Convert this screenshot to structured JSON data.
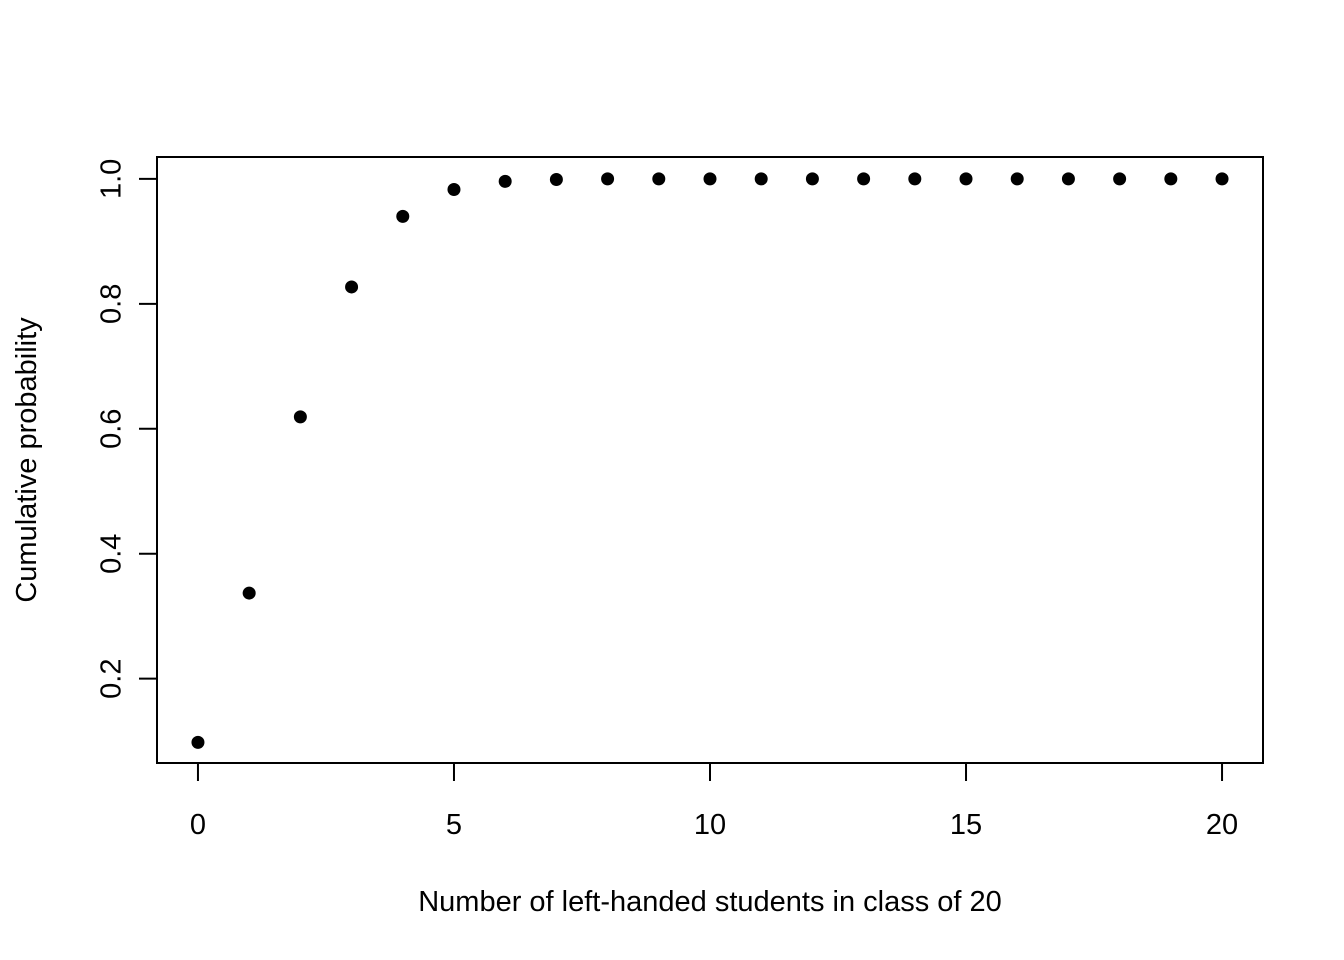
{
  "chart_data": {
    "type": "scatter",
    "title": "",
    "xlabel": "Number of left-handed students in class of 20",
    "ylabel": "Cumulative probability",
    "xlim": [
      -0.8,
      20.8
    ],
    "ylim": [
      0.065,
      1.035
    ],
    "x_ticks": [
      0,
      5,
      10,
      15,
      20
    ],
    "y_ticks": [
      0.2,
      0.4,
      0.6,
      0.8,
      1.0
    ],
    "x_tick_labels": [
      "0",
      "5",
      "10",
      "15",
      "20"
    ],
    "y_tick_labels": [
      "0.2",
      "0.4",
      "0.6",
      "0.8",
      "1.0"
    ],
    "grid": false,
    "legend": "none",
    "point_color": "#000000",
    "x": [
      0,
      1,
      2,
      3,
      4,
      5,
      6,
      7,
      8,
      9,
      10,
      11,
      12,
      13,
      14,
      15,
      16,
      17,
      18,
      19,
      20
    ],
    "y": [
      0.098,
      0.337,
      0.619,
      0.827,
      0.94,
      0.983,
      0.996,
      0.999,
      1.0,
      1.0,
      1.0,
      1.0,
      1.0,
      1.0,
      1.0,
      1.0,
      1.0,
      1.0,
      1.0,
      1.0,
      1.0
    ]
  }
}
